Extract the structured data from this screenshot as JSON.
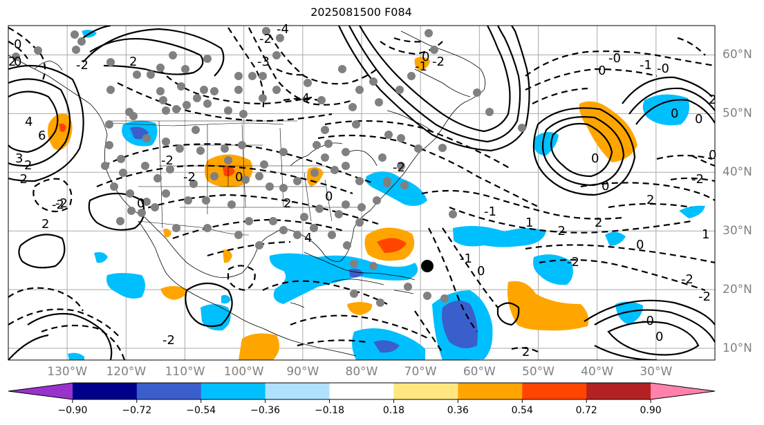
{
  "title": "2025081500 F084",
  "map": {
    "projection": "cylindrical",
    "extent": {
      "lon_min": -140,
      "lon_max": -20,
      "lat_min": 8,
      "lat_max": 65
    },
    "grid": true,
    "grid_color": "#a9a9a9",
    "coastline_color": "#000000",
    "contour_color": "#000000",
    "marker_color": "#808080",
    "storm_marker_color": "#000000"
  },
  "lon_labels": [
    {
      "lon": -130,
      "text": "130°W"
    },
    {
      "lon": -120,
      "text": "120°W"
    },
    {
      "lon": -110,
      "text": "110°W"
    },
    {
      "lon": -100,
      "text": "100°W"
    },
    {
      "lon": -90,
      "text": "90°W"
    },
    {
      "lon": -80,
      "text": "80°W"
    },
    {
      "lon": -70,
      "text": "70°W"
    },
    {
      "lon": -60,
      "text": "60°W"
    },
    {
      "lon": -50,
      "text": "50°W"
    },
    {
      "lon": -40,
      "text": "40°W"
    },
    {
      "lon": -30,
      "text": "30°W"
    }
  ],
  "lat_labels": [
    {
      "lat": 60,
      "text": "60°N"
    },
    {
      "lat": 50,
      "text": "50°N"
    },
    {
      "lat": 40,
      "text": "40°N"
    },
    {
      "lat": 30,
      "text": "30°N"
    },
    {
      "lat": 20,
      "text": "20°N"
    },
    {
      "lat": 10,
      "text": "10°N"
    }
  ],
  "colorbar": {
    "colors": [
      "#9932cc",
      "#00008b",
      "#3a5fcd",
      "#00bfff",
      "#b0e2ff",
      "#ffffff",
      "#ffe680",
      "#ffa500",
      "#ff4500",
      "#b22222",
      "#ff82ab"
    ],
    "labels": [
      "−0.90",
      "−0.72",
      "−0.54",
      "−0.36",
      "−0.18",
      "0.18",
      "0.36",
      "0.54",
      "0.72",
      "0.90"
    ],
    "extend": "both"
  },
  "contour_labels": [
    "0",
    "2",
    "4",
    "6",
    "-2",
    "-4",
    "2",
    "0",
    "-2",
    "-3",
    "-4",
    "-2",
    "0",
    "2",
    "4",
    "-2",
    "2",
    "-2",
    "3",
    "2",
    "-2",
    "0",
    "-2",
    "0",
    "-2",
    "-1",
    "-2",
    "0",
    "-1",
    "1",
    "-2",
    "-2",
    "0",
    "1",
    "2",
    "-2",
    "2",
    "0",
    "-0",
    "-1",
    "0",
    "0",
    "2",
    "-0",
    "0",
    "-2",
    "0",
    "0",
    "-1",
    "0",
    "2",
    "-0",
    "0",
    "-2",
    "-2"
  ],
  "colorbar_scale": [
    -1.08,
    1.08
  ]
}
